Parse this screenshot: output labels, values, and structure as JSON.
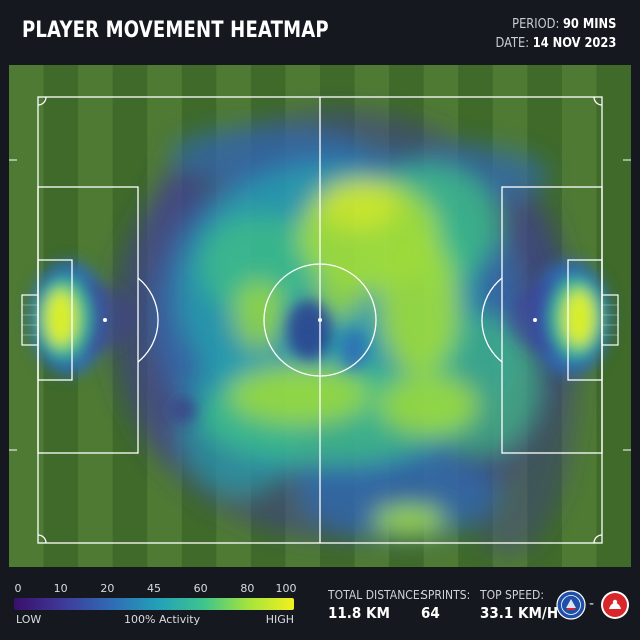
{
  "header": {
    "title": "PLAYER MOVEMENT HEATMAP",
    "period_label": "PERIOD:",
    "period_value": "90 MINS",
    "date_label": "DATE:",
    "date_value": "14 NOV 2023"
  },
  "legend": {
    "ticks": [
      "0",
      "10",
      "20",
      "45",
      "60",
      "80",
      "100"
    ],
    "low": "LOW",
    "mid": "100% Activity",
    "high": "HIGH",
    "colors": [
      "#3a0f6b",
      "#3f3b9a",
      "#2f6cb6",
      "#23a2b8",
      "#3fc58c",
      "#a6e43c",
      "#f2f01e"
    ]
  },
  "stats": {
    "distance_label": "TOTAL DISTANCE:",
    "distance_value": "11.8 KM",
    "sprints_label": "SPRINTS:",
    "sprints_value": "64",
    "speed_label": "TOP SPEED:",
    "speed_value": "33.1 KM/H"
  },
  "crests": {
    "home": "chelsea-crest",
    "away": "opponent-crest",
    "separator": "-",
    "home_color": "#1f4fa8",
    "away_color": "#d8262b"
  },
  "colors": {
    "background": "#15181e",
    "grass_light": "#4f7a34",
    "grass_dark": "#3f6a2a",
    "line": "#ffffff"
  }
}
